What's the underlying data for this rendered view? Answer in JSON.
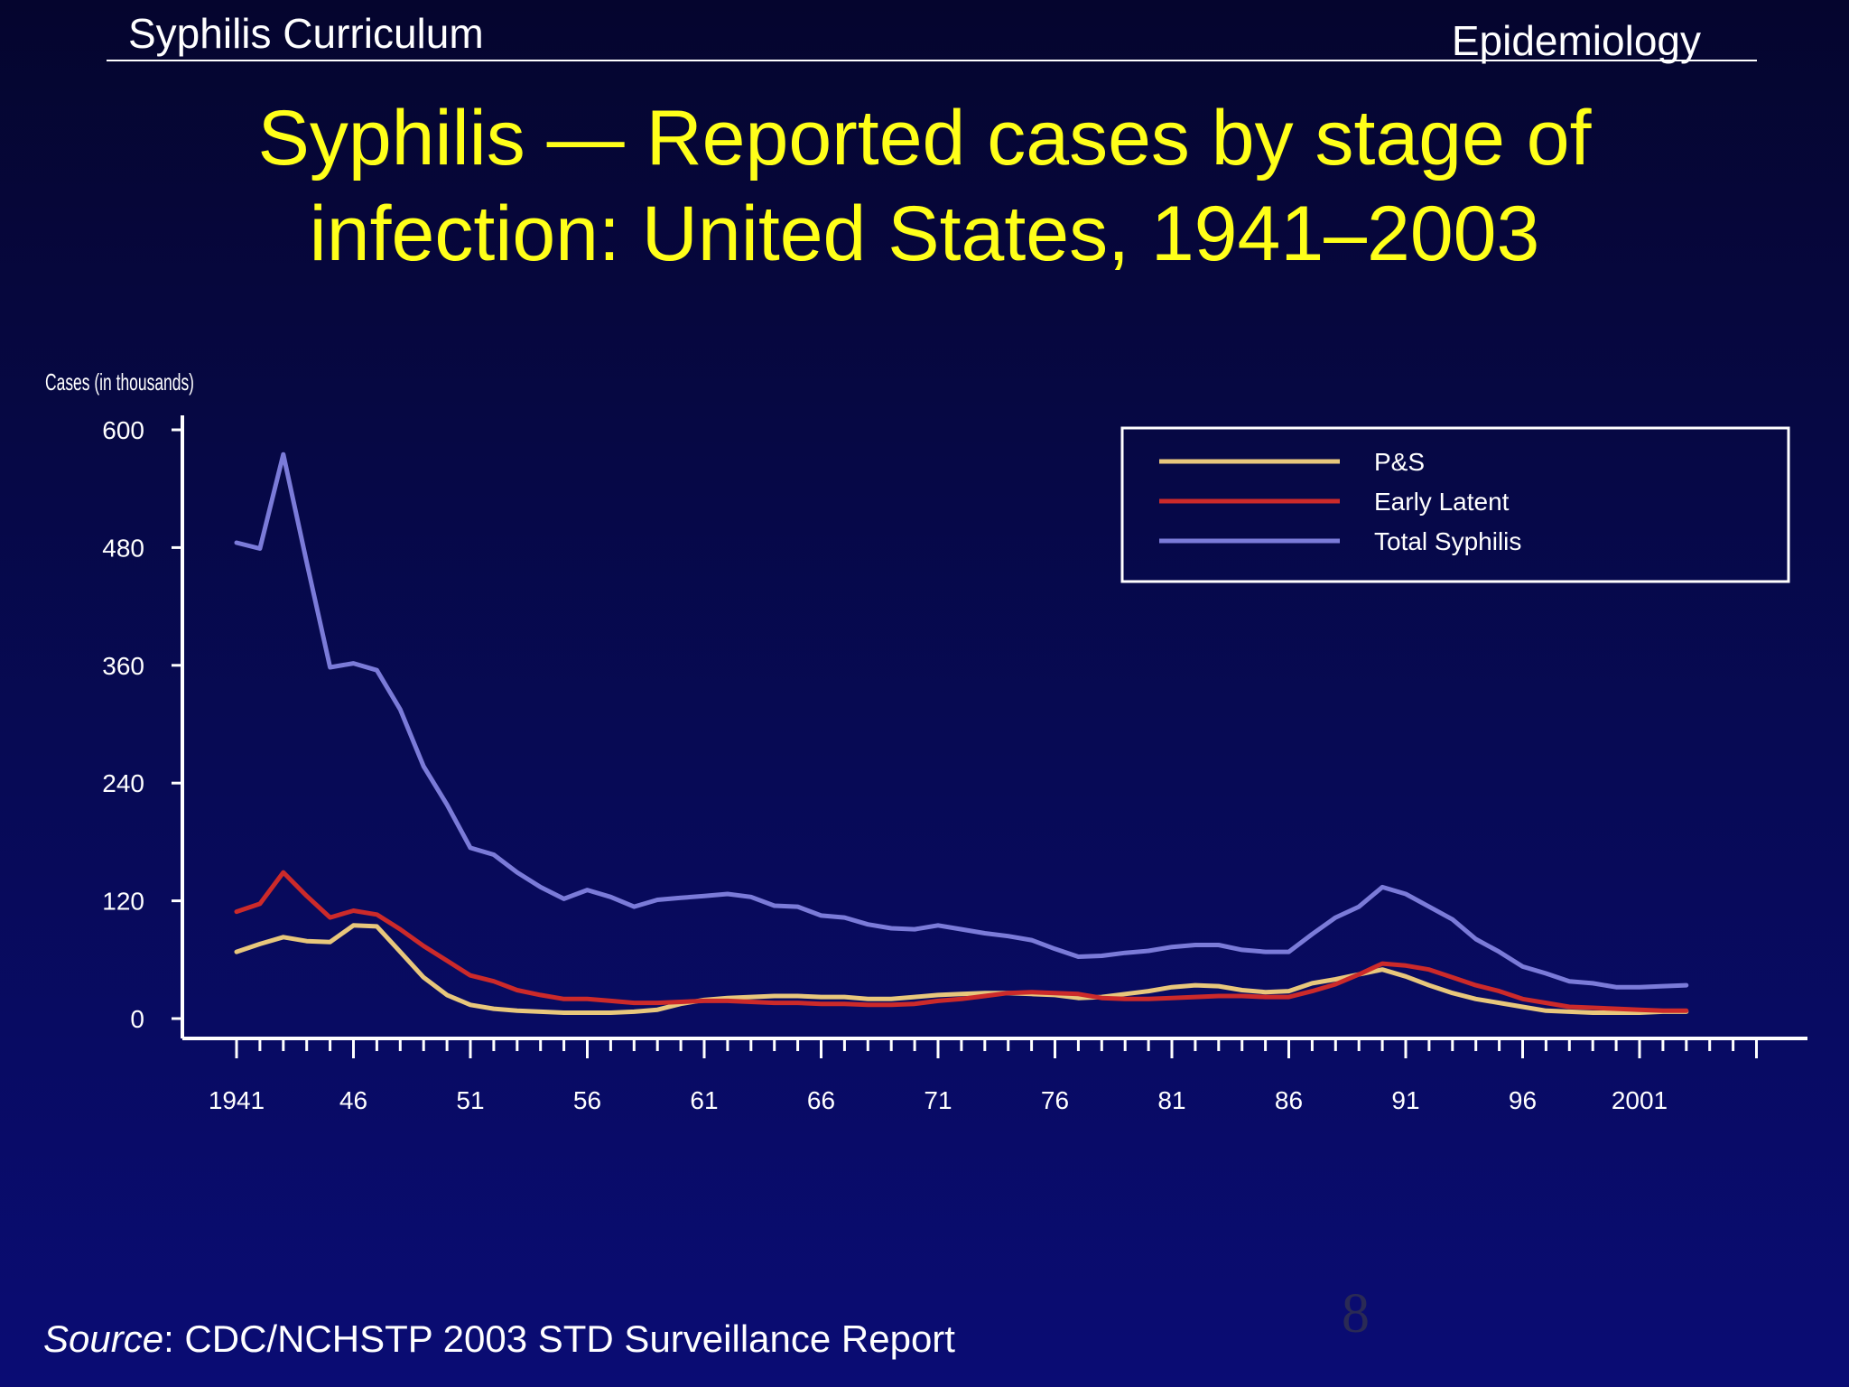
{
  "header": {
    "left": "Syphilis Curriculum",
    "right": "Epidemiology"
  },
  "title": {
    "line1": "Syphilis — Reported cases by stage of",
    "line2": "infection: United States, 1941–2003"
  },
  "chart_data": {
    "type": "line",
    "title": "Syphilis — Reported cases by stage of infection: United States, 1941–2003",
    "ylabel": "Cases (in thousands)",
    "xlabel": "",
    "xlim": [
      1941,
      2006
    ],
    "ylim": [
      0,
      600
    ],
    "y_ticks": [
      0,
      120,
      240,
      360,
      480,
      600
    ],
    "x_tick_labels": [
      {
        "year": 1941,
        "label": "1941"
      },
      {
        "year": 1946,
        "label": "46"
      },
      {
        "year": 1951,
        "label": "51"
      },
      {
        "year": 1956,
        "label": "56"
      },
      {
        "year": 1961,
        "label": "61"
      },
      {
        "year": 1966,
        "label": "66"
      },
      {
        "year": 1971,
        "label": "71"
      },
      {
        "year": 1976,
        "label": "76"
      },
      {
        "year": 1981,
        "label": "81"
      },
      {
        "year": 1986,
        "label": "86"
      },
      {
        "year": 1991,
        "label": "91"
      },
      {
        "year": 1996,
        "label": "96"
      },
      {
        "year": 2001,
        "label": "2001"
      }
    ],
    "grid": false,
    "legend_position": "top-right",
    "x": [
      1941,
      1942,
      1943,
      1944,
      1945,
      1946,
      1947,
      1948,
      1949,
      1950,
      1951,
      1952,
      1953,
      1954,
      1955,
      1956,
      1957,
      1958,
      1959,
      1960,
      1961,
      1962,
      1963,
      1964,
      1965,
      1966,
      1967,
      1968,
      1969,
      1970,
      1971,
      1972,
      1973,
      1974,
      1975,
      1976,
      1977,
      1978,
      1979,
      1980,
      1981,
      1982,
      1983,
      1984,
      1985,
      1986,
      1987,
      1988,
      1989,
      1990,
      1991,
      1992,
      1993,
      1994,
      1995,
      1996,
      1997,
      1998,
      1999,
      2000,
      2001,
      2002,
      2003
    ],
    "series": [
      {
        "name": "P&S",
        "color": "#e8c77c",
        "values": [
          68,
          76,
          83,
          79,
          78,
          95,
          94,
          68,
          42,
          24,
          14,
          10,
          8,
          7,
          6,
          6,
          6,
          7,
          9,
          15,
          19,
          21,
          22,
          23,
          23,
          22,
          22,
          20,
          20,
          22,
          24,
          25,
          26,
          26,
          25,
          24,
          21,
          22,
          25,
          28,
          32,
          34,
          33,
          29,
          27,
          28,
          36,
          40,
          45,
          50,
          43,
          34,
          26,
          20,
          16,
          12,
          8,
          7,
          6,
          6,
          6,
          7,
          7
        ]
      },
      {
        "name": "Early Latent",
        "color": "#cc2a2a",
        "values": [
          109,
          117,
          149,
          125,
          103,
          110,
          106,
          91,
          74,
          59,
          44,
          38,
          29,
          24,
          20,
          20,
          18,
          16,
          16,
          17,
          18,
          18,
          17,
          16,
          16,
          15,
          15,
          14,
          14,
          15,
          18,
          20,
          23,
          26,
          27,
          26,
          25,
          21,
          20,
          20,
          21,
          22,
          23,
          23,
          22,
          22,
          28,
          35,
          45,
          56,
          54,
          50,
          42,
          34,
          28,
          20,
          16,
          12,
          11,
          10,
          9,
          8,
          8
        ]
      },
      {
        "name": "Total Syphilis",
        "color": "#7b7bd9",
        "values": [
          485,
          479,
          575,
          465,
          358,
          362,
          355,
          315,
          257,
          218,
          174,
          167,
          149,
          134,
          122,
          131,
          124,
          114,
          121,
          123,
          125,
          127,
          124,
          115,
          114,
          105,
          103,
          96,
          92,
          91,
          95,
          91,
          87,
          84,
          80,
          71,
          63,
          64,
          67,
          69,
          73,
          75,
          75,
          70,
          68,
          68,
          86,
          103,
          114,
          134,
          127,
          114,
          101,
          81,
          68,
          53,
          46,
          38,
          36,
          32,
          32,
          33,
          34
        ]
      }
    ]
  },
  "source": {
    "label": "Source",
    "text": ": CDC/NCHSTP 2003 STD Surveillance Report"
  },
  "slide_number": "8"
}
